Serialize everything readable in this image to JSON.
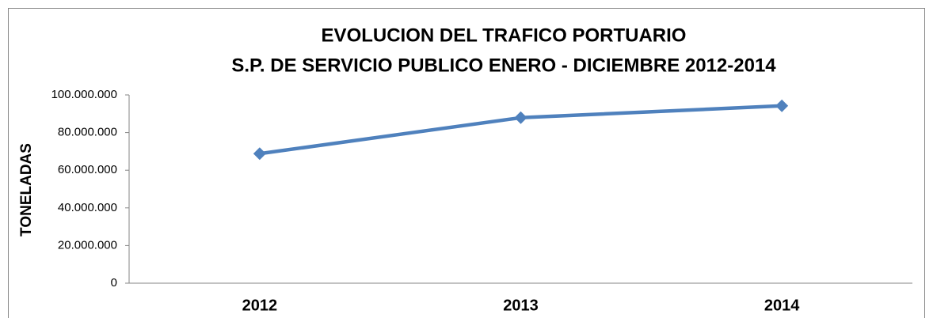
{
  "chart_data": {
    "type": "line",
    "title": "EVOLUCION DEL TRAFICO PORTUARIO",
    "subtitle": "S.P. DE SERVICIO PUBLICO ENERO - DICIEMBRE 2012-2014",
    "y_label": "TONELADAS",
    "categories": [
      "2012",
      "2013",
      "2014"
    ],
    "series": [
      {
        "name": "TONELADAS",
        "color": "#4f81bd",
        "values": [
          68800000,
          87900000,
          94200000
        ]
      }
    ],
    "ylim": [
      0,
      100000000
    ],
    "yticks": [
      0,
      {
        "value": 20000000,
        "label": "20.000.000"
      },
      {
        "value": 40000000,
        "label": "40.000.000"
      },
      {
        "value": 60000000,
        "label": "60.000.000"
      },
      {
        "value": 80000000,
        "label": "80.000.000"
      },
      {
        "value": 100000000,
        "label": "100.000.000"
      }
    ],
    "grid": false,
    "legend": false
  }
}
